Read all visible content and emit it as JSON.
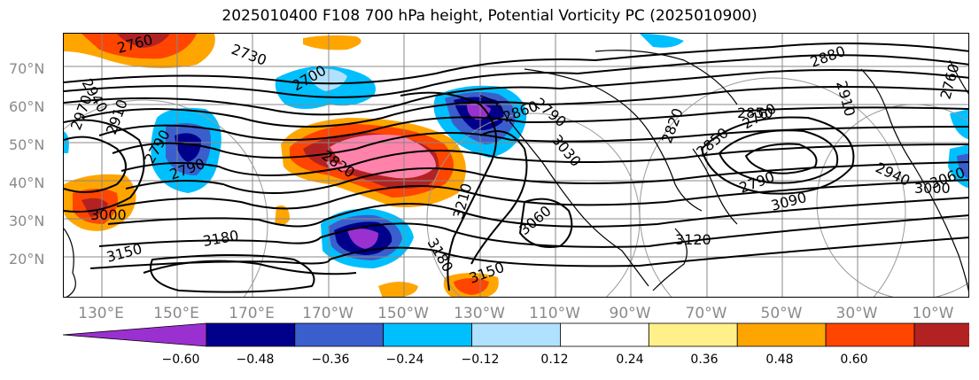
{
  "title": "2025010400 F108 700 hPa height, Potential Vorticity PC (2025010900)",
  "lat_labels": [
    "70°N",
    "60°N",
    "50°N",
    "40°N",
    "30°N",
    "20°N"
  ],
  "lon_labels": [
    "130°E",
    "150°E",
    "170°E",
    "170°W",
    "150°W",
    "130°W",
    "110°W",
    "90°W",
    "70°W",
    "50°W",
    "30°W",
    "10°W"
  ],
  "colorbar": {
    "colors": [
      "#9b30d0",
      "#00008b",
      "#3a5fcd",
      "#00bfff",
      "#b0e2ff",
      "#ffffff",
      "#fff08a",
      "#ffa500",
      "#ff4500",
      "#b22222",
      "#ff82ab"
    ],
    "ticks": [
      "−0.60",
      "−0.48",
      "−0.36",
      "−0.24",
      "−0.12",
      "0.12",
      "0.24",
      "0.36",
      "0.48",
      "0.60"
    ]
  },
  "contour_labels": [
    "2760",
    "2730",
    "2940",
    "2970",
    "2910",
    "2790",
    "2700",
    "2820",
    "2790",
    "2860",
    "3030",
    "3000",
    "3150",
    "3180",
    "3210",
    "3180",
    "3150",
    "3060",
    "3120",
    "2850",
    "2760",
    "2880",
    "2940",
    "2790",
    "3000",
    "3090",
    "3060",
    "2910",
    "2760",
    "2850",
    "2790",
    "2820"
  ],
  "shading_colors": {
    "purple": "#9b30d0",
    "navy": "#00008b",
    "blue": "#3a5fcd",
    "cyan": "#00bfff",
    "light_blue": "#b0e2ff",
    "yellow": "#fff08a",
    "orange": "#ffa500",
    "orange_red": "#ff4500",
    "dark_red": "#b22222",
    "pink": "#ff82ab"
  }
}
